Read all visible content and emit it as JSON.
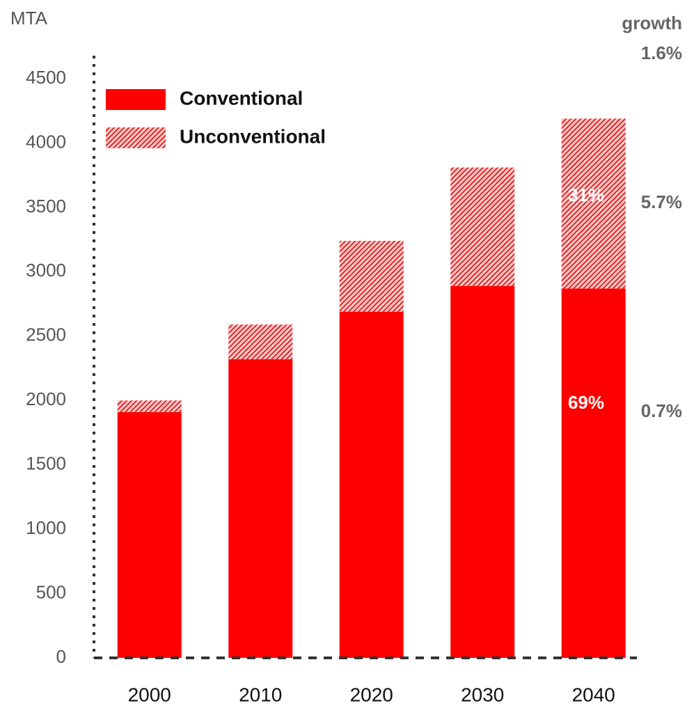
{
  "chart_data": {
    "type": "stacked_bar",
    "y_label": "MTA",
    "categories": [
      "2000",
      "2010",
      "2020",
      "2030",
      "2040"
    ],
    "series": [
      {
        "name": "Conventional",
        "color": "#ff0000",
        "hatch": false,
        "values": [
          1910,
          2320,
          2690,
          2890,
          2870
        ]
      },
      {
        "name": "Unconventional",
        "color": "#ff0000",
        "hatch": true,
        "values": [
          90,
          270,
          550,
          920,
          1320
        ]
      }
    ],
    "ylim": [
      0,
      4500
    ],
    "yticks": [
      0,
      500,
      1000,
      1500,
      2000,
      2500,
      3000,
      3500,
      4000,
      4500
    ],
    "annotations": [
      "growth",
      "1.6%",
      "5.7%",
      "0.7%",
      "31%",
      "69%"
    ]
  }
}
